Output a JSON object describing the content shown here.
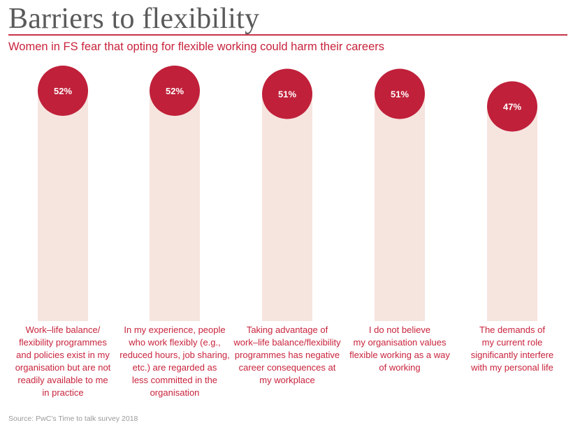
{
  "title": "Barriers to flexibility",
  "subtitle": "Women in FS fear that opting for flexible working could harm their careers",
  "source": "Source: PwC’s Time to talk survey 2018",
  "colors": {
    "circle": "#c0203a",
    "bar": "#f6e4df",
    "label": "#c8233c",
    "value_text": "#ffffff"
  },
  "chart_data": {
    "type": "bar",
    "unit": "%",
    "categories": [
      "Work–life balance/ flexibility programmes and policies exist in my organisation but are not readily available to me in practice",
      "In my experience, people who work flexibly (e.g., reduced hours, job sharing, etc.) are regarded as less committed in the organisation",
      "Taking advantage of work–life balance/flexibility programmes has negative career consequences at my workplace",
      "I do not believe my organisation values flexible working as a way of working",
      "The demands of my current role significantly interfere with my personal life"
    ],
    "label_lines": [
      [
        "Work–life balance/",
        "flexibility programmes",
        "and policies exist in my",
        "organisation but are not",
        "readily available to me",
        "in practice"
      ],
      [
        "In my experience, people",
        "who work flexibly (e.g.,",
        "reduced hours, job sharing,",
        "etc.) are regarded as",
        "less committed in the",
        "organisation"
      ],
      [
        "Taking advantage of",
        "work–life balance/flexibility",
        "programmes has negative",
        "career consequences at",
        "my workplace"
      ],
      [
        "I do not believe",
        "my organisation values",
        "flexible working as a way",
        "of working"
      ],
      [
        "The demands of",
        "my current role",
        "significantly interfere",
        "with my personal life"
      ]
    ],
    "values": [
      52,
      52,
      51,
      51,
      47
    ],
    "value_labels": [
      "52%",
      "52%",
      "51%",
      "51%",
      "47%"
    ]
  }
}
